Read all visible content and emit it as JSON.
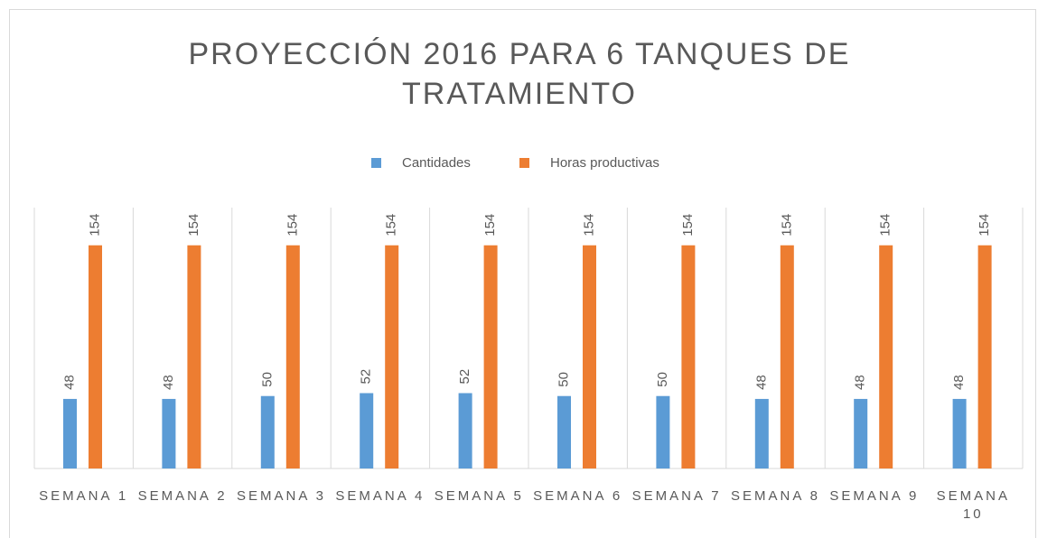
{
  "chart_data": {
    "type": "bar",
    "title": "PROYECCIÓN 2016 PARA 6 TANQUES DE TRATAMIENTO",
    "categories": [
      "SEMANA 1",
      "SEMANA 2",
      "SEMANA 3",
      "SEMANA 4",
      "SEMANA 5",
      "SEMANA 6",
      "SEMANA 7",
      "SEMANA 8",
      "SEMANA 9",
      "SEMANA 10"
    ],
    "series": [
      {
        "name": "Cantidades",
        "color": "#5b9bd5",
        "values": [
          48,
          48,
          50,
          52,
          52,
          50,
          50,
          48,
          48,
          48
        ]
      },
      {
        "name": "Horas productivas",
        "color": "#ed7d31",
        "values": [
          154,
          154,
          154,
          154,
          154,
          154,
          154,
          154,
          154,
          154
        ]
      }
    ],
    "ylim": [
      0,
      180
    ],
    "legend": "top",
    "data_labels": true
  }
}
